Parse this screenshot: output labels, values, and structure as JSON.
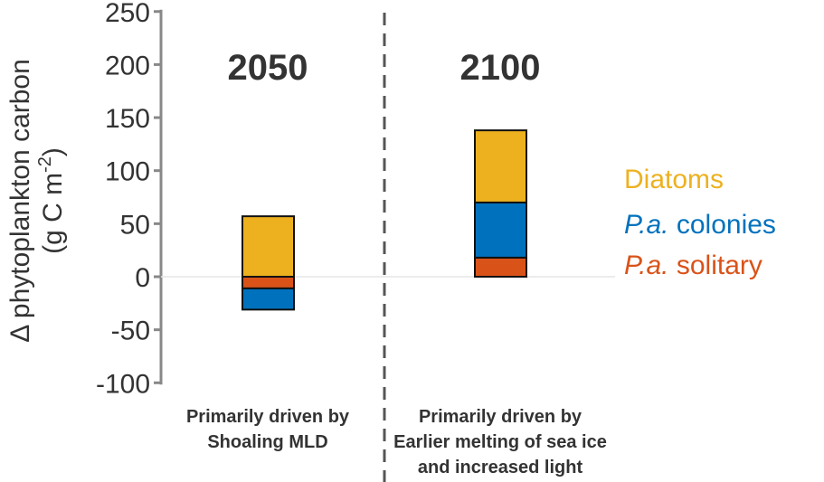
{
  "chart_data": {
    "type": "bar",
    "stacked": true,
    "ylabel_line1": "Δ phytoplankton carbon",
    "ylabel_line2": "(g C m",
    "ylabel_sup": "-2",
    "ylabel_close": ")",
    "ylim": [
      -100,
      250
    ],
    "yticks": [
      "250",
      "200",
      "150",
      "100",
      "50",
      "0",
      "-50",
      "-100"
    ],
    "ytick_values": [
      250,
      200,
      150,
      100,
      50,
      0,
      -50,
      -100
    ],
    "grid": false,
    "zero_line": true,
    "legend_placement": "right",
    "panels": [
      {
        "year": "2050",
        "caption": [
          "Primarily driven by",
          "Shoaling MLD"
        ]
      },
      {
        "year": "2100",
        "caption": [
          "Primarily driven by",
          "Earlier melting of sea ice",
          "and increased light"
        ]
      }
    ],
    "series": [
      {
        "name": "Diatoms",
        "italic_prefix": "",
        "color": "#EDB120",
        "values": [
          57,
          68
        ]
      },
      {
        "name": "colonies",
        "italic_prefix": "P.a.",
        "color": "#0072BD",
        "values": [
          -20,
          52
        ]
      },
      {
        "name": "solitary",
        "italic_prefix": "P.a.",
        "color": "#D95319",
        "values": [
          -11,
          18
        ]
      }
    ],
    "segments": [
      [
        {
          "series": 0,
          "from": 0,
          "to": 57
        },
        {
          "series": 2,
          "from": 0,
          "to": -11
        },
        {
          "series": 1,
          "from": -11,
          "to": -31
        }
      ],
      [
        {
          "series": 2,
          "from": 0,
          "to": 18
        },
        {
          "series": 1,
          "from": 18,
          "to": 70
        },
        {
          "series": 0,
          "from": 70,
          "to": 138
        }
      ]
    ]
  }
}
